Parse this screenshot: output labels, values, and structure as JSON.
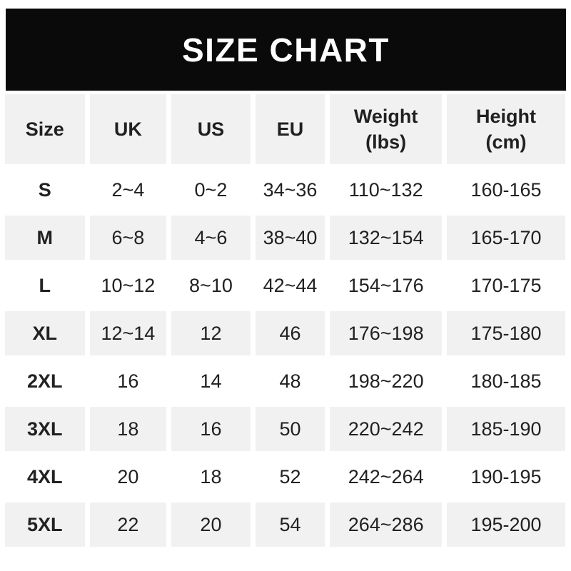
{
  "title": "SIZE CHART",
  "colors": {
    "banner_bg": "#0a0a0a",
    "banner_text": "#ffffff",
    "row_alt_bg": "#f1f1f1",
    "text": "#212121",
    "page_bg": "#ffffff"
  },
  "chart_data": {
    "type": "table",
    "title": "SIZE CHART",
    "columns": [
      "Size",
      "UK",
      "US",
      "EU",
      "Weight\n(lbs)",
      "Height\n(cm)"
    ],
    "rows": [
      [
        "S",
        "2~4",
        "0~2",
        "34~36",
        "110~132",
        "160-165"
      ],
      [
        "M",
        "6~8",
        "4~6",
        "38~40",
        "132~154",
        "165-170"
      ],
      [
        "L",
        "10~12",
        "8~10",
        "42~44",
        "154~176",
        "170-175"
      ],
      [
        "XL",
        "12~14",
        "12",
        "46",
        "176~198",
        "175-180"
      ],
      [
        "2XL",
        "16",
        "14",
        "48",
        "198~220",
        "180-185"
      ],
      [
        "3XL",
        "18",
        "16",
        "50",
        "220~242",
        "185-190"
      ],
      [
        "4XL",
        "20",
        "18",
        "52",
        "242~264",
        "190-195"
      ],
      [
        "5XL",
        "22",
        "20",
        "54",
        "264~286",
        "195-200"
      ]
    ],
    "layout": {
      "alternating_rows": "white / light-gray starting with white for row S",
      "header_background": "light-gray",
      "cell_gutters": "white gaps between all cells"
    }
  }
}
